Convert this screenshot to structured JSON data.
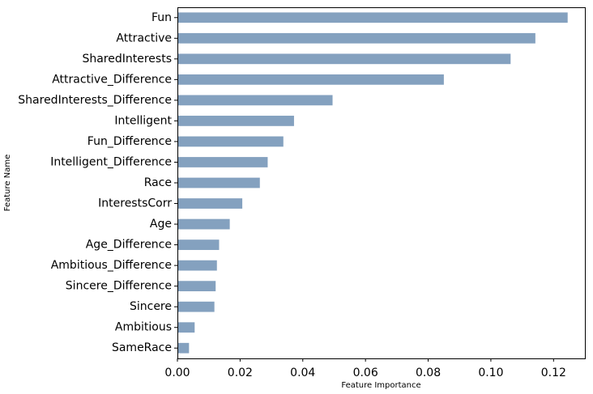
{
  "chart_data": {
    "type": "bar",
    "orientation": "horizontal",
    "xlabel": "Feature Importance",
    "ylabel": "Feature Name",
    "xlim": [
      0,
      0.13
    ],
    "xticks": [
      0.0,
      0.02,
      0.04,
      0.06,
      0.08,
      0.1,
      0.12
    ],
    "xtick_labels": [
      "0.00",
      "0.02",
      "0.04",
      "0.06",
      "0.08",
      "0.10",
      "0.12"
    ],
    "grid": false,
    "bar_color": "#84a1bf",
    "categories": [
      "Fun",
      "Attractive",
      "SharedInterests",
      "Attractive_Difference",
      "SharedInterests_Difference",
      "Intelligent",
      "Fun_Difference",
      "Intelligent_Difference",
      "Race",
      "InterestsCorr",
      "Age",
      "Age_Difference",
      "Ambitious_Difference",
      "Sincere_Difference",
      "Sincere",
      "Ambitious",
      "SameRace"
    ],
    "values": [
      0.1245,
      0.1142,
      0.1063,
      0.085,
      0.0495,
      0.0372,
      0.0338,
      0.0288,
      0.0263,
      0.0207,
      0.0167,
      0.0133,
      0.0126,
      0.0122,
      0.0118,
      0.0055,
      0.0037
    ]
  }
}
